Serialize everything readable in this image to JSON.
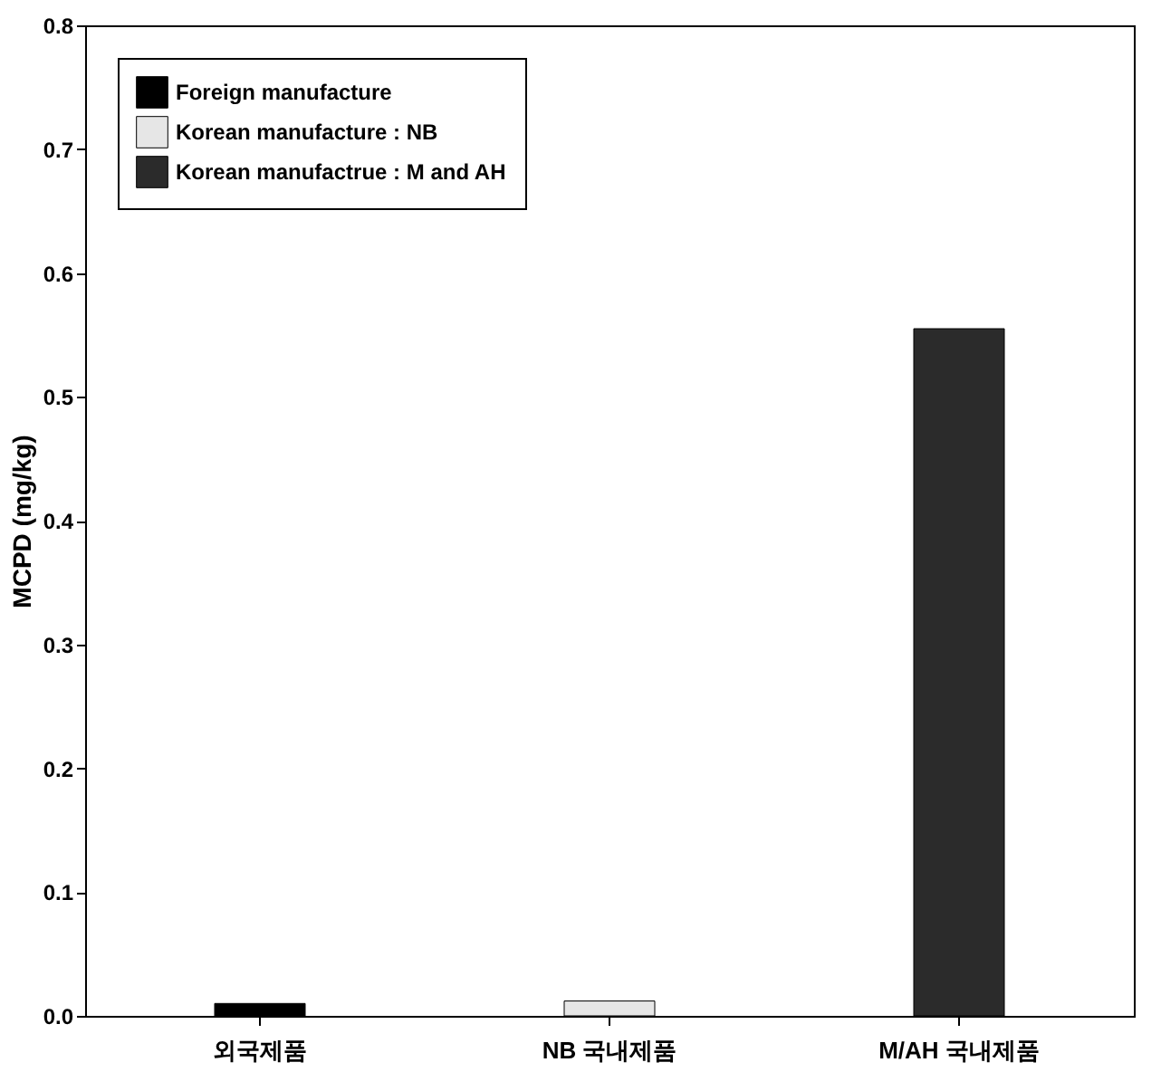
{
  "chart_data": {
    "type": "bar",
    "categories": [
      "외국제품",
      "NB 국내제품",
      "M/AH 국내제품"
    ],
    "ylabel": "MCPD (mg/kg)",
    "series": [
      {
        "name": "Foreign manufacture",
        "color": "#000000",
        "values": [
          0.01,
          null,
          null
        ]
      },
      {
        "name": "Korean manufacture : NB",
        "color": "#e6e6e6",
        "values": [
          null,
          0.012,
          null
        ]
      },
      {
        "name": "Korean manufactrue : M and AH",
        "color": "#2b2b2b",
        "values": [
          null,
          null,
          0.555
        ]
      }
    ],
    "ylim": [
      0,
      0.8
    ],
    "yticks": [
      {
        "value": 0,
        "label": "0.0"
      },
      0.1,
      0.2,
      0.3,
      0.4,
      0.5,
      0.6,
      0.7,
      0.8
    ],
    "legend": "top left",
    "grid": false
  }
}
